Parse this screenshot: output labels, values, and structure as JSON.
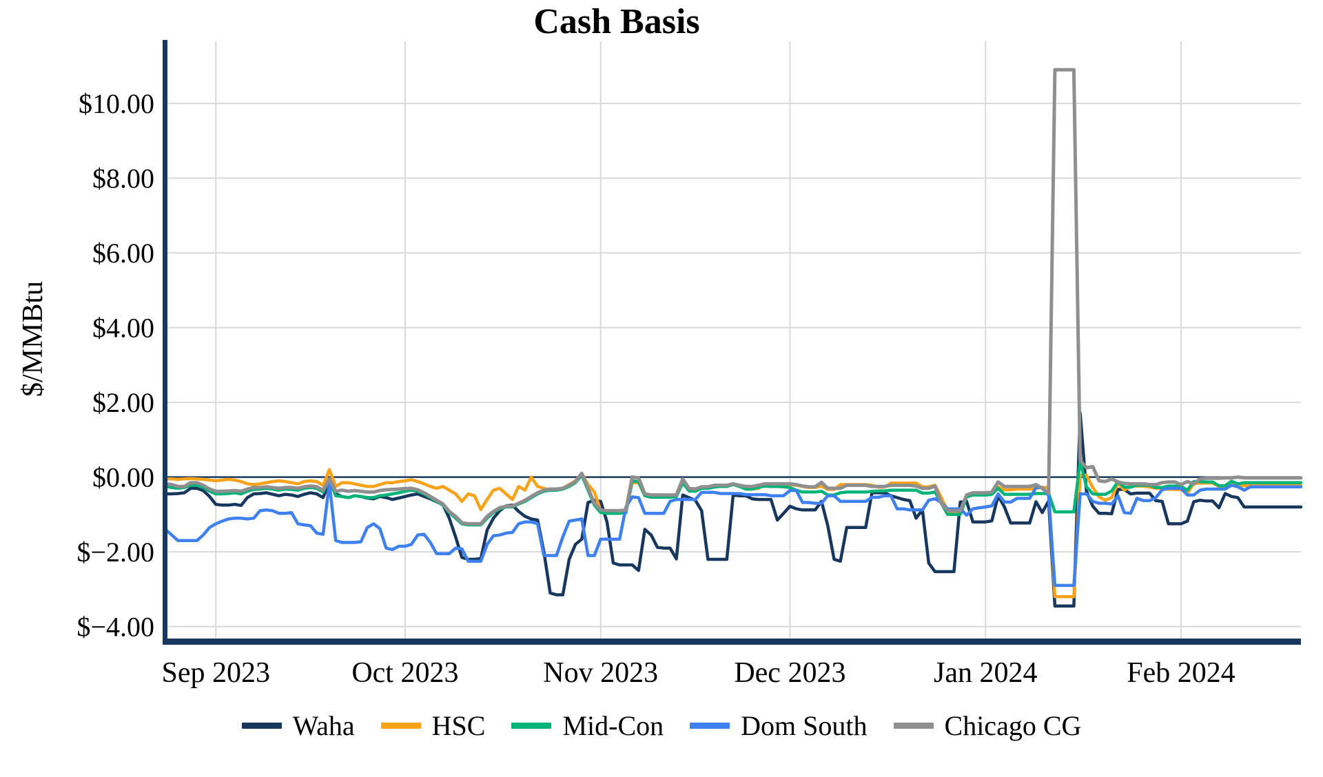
{
  "title": "Cash Basis",
  "y_axis_title": "$/MMBtu",
  "chart_data": {
    "type": "line",
    "title": "Cash Basis",
    "xlabel": "",
    "ylabel": "$/MMBtu",
    "ylim": [
      -4.6,
      11.7
    ],
    "grid": true,
    "legend_position": "bottom",
    "zero_line": true,
    "x_note": "daily values, day 0 = 2023-08-24, day 180 = 2024-02-20",
    "x_days_total": 180,
    "y_ticks": [
      {
        "value": 10,
        "label": "$10.00"
      },
      {
        "value": 8,
        "label": "$8.00"
      },
      {
        "value": 6,
        "label": "$6.00"
      },
      {
        "value": 4,
        "label": "$4.00"
      },
      {
        "value": 2,
        "label": "$2.00"
      },
      {
        "value": 0,
        "label": "$0.00"
      },
      {
        "value": -2,
        "label": "$−2.00"
      },
      {
        "value": -4,
        "label": "$−4.00"
      }
    ],
    "x_ticks": [
      {
        "day": 8,
        "label": "Sep 2023"
      },
      {
        "day": 38,
        "label": "Oct 2023"
      },
      {
        "day": 69,
        "label": "Nov 2023"
      },
      {
        "day": 99,
        "label": "Dec 2023"
      },
      {
        "day": 130,
        "label": "Jan 2024"
      },
      {
        "day": 161,
        "label": "Feb 2024"
      }
    ],
    "colors": {
      "axis": "#17375e",
      "gridline": "#d9d9d9",
      "zero_line": "#17375e",
      "background": "#ffffff"
    },
    "series": [
      {
        "name": "Waha",
        "color": "#17375e",
        "values": [
          -0.45,
          -0.45,
          -0.44,
          -0.42,
          -0.3,
          -0.3,
          -0.36,
          -0.52,
          -0.73,
          -0.75,
          -0.75,
          -0.73,
          -0.76,
          -0.55,
          -0.45,
          -0.44,
          -0.42,
          -0.46,
          -0.5,
          -0.46,
          -0.48,
          -0.52,
          -0.46,
          -0.42,
          -0.45,
          -0.55,
          -0.13,
          -0.45,
          -0.52,
          -0.55,
          -0.5,
          -0.52,
          -0.56,
          -0.58,
          -0.52,
          -0.55,
          -0.6,
          -0.56,
          -0.52,
          -0.48,
          -0.45,
          -0.52,
          -0.58,
          -0.66,
          -0.74,
          -1.1,
          -1.6,
          -2.15,
          -2.2,
          -2.2,
          -2.18,
          -1.42,
          -1.1,
          -0.9,
          -0.77,
          -0.75,
          -0.92,
          -1.05,
          -1.12,
          -1.15,
          -2.0,
          -3.1,
          -3.15,
          -3.15,
          -2.2,
          -1.8,
          -1.66,
          -0.68,
          -0.62,
          -0.65,
          -1.2,
          -2.3,
          -2.35,
          -2.35,
          -2.35,
          -2.5,
          -1.4,
          -1.55,
          -1.88,
          -1.9,
          -1.9,
          -2.19,
          -0.48,
          -0.55,
          -0.62,
          -0.9,
          -2.2,
          -2.2,
          -2.2,
          -2.2,
          -0.48,
          -0.5,
          -0.5,
          -0.58,
          -0.6,
          -0.6,
          -0.6,
          -1.15,
          -0.97,
          -0.78,
          -0.85,
          -0.88,
          -0.88,
          -0.88,
          -0.65,
          -1.3,
          -2.2,
          -2.25,
          -1.35,
          -1.35,
          -1.35,
          -1.35,
          -0.42,
          -0.42,
          -0.42,
          -0.5,
          -0.55,
          -0.6,
          -0.63,
          -1.1,
          -0.88,
          -2.3,
          -2.53,
          -2.53,
          -2.53,
          -2.53,
          -0.67,
          -0.65,
          -1.2,
          -1.2,
          -1.2,
          -1.17,
          -0.5,
          -0.8,
          -1.23,
          -1.23,
          -1.23,
          -1.23,
          -0.66,
          -0.95,
          -0.64,
          -3.45,
          -3.45,
          -3.45,
          -3.45,
          1.71,
          -0.38,
          -0.78,
          -0.97,
          -0.97,
          -0.98,
          -0.33,
          -0.33,
          -0.45,
          -0.43,
          -0.43,
          -0.43,
          -0.63,
          -0.65,
          -1.25,
          -1.25,
          -1.25,
          -1.18,
          -0.66,
          -0.62,
          -0.64,
          -0.64,
          -0.82,
          -0.44,
          -0.52,
          -0.55,
          -0.8,
          -0.8,
          -0.8,
          -0.8,
          -0.8,
          -0.8,
          -0.8,
          -0.8,
          -0.8,
          -0.8
        ]
      },
      {
        "name": "HSC",
        "color": "#f9a21a",
        "values": [
          -0.05,
          -0.05,
          -0.06,
          -0.05,
          -0.04,
          -0.05,
          -0.06,
          -0.08,
          -0.1,
          -0.08,
          -0.06,
          -0.08,
          -0.12,
          -0.18,
          -0.2,
          -0.18,
          -0.15,
          -0.12,
          -0.1,
          -0.12,
          -0.15,
          -0.18,
          -0.12,
          -0.1,
          -0.12,
          -0.22,
          0.2,
          -0.25,
          -0.15,
          -0.15,
          -0.18,
          -0.22,
          -0.25,
          -0.25,
          -0.2,
          -0.15,
          -0.15,
          -0.12,
          -0.1,
          -0.07,
          -0.12,
          -0.18,
          -0.25,
          -0.3,
          -0.25,
          -0.35,
          -0.45,
          -0.65,
          -0.45,
          -0.5,
          -0.87,
          -0.6,
          -0.35,
          -0.3,
          -0.45,
          -0.6,
          -0.25,
          -0.35,
          0.0,
          -0.25,
          -0.3,
          -0.35,
          -0.35,
          -0.3,
          -0.2,
          -0.1,
          0.1,
          -0.2,
          -0.4,
          -0.9,
          -0.9,
          -0.92,
          -0.92,
          -0.9,
          -0.15,
          -0.15,
          -0.5,
          -0.52,
          -0.52,
          -0.52,
          -0.52,
          -0.52,
          -0.15,
          -0.35,
          -0.35,
          -0.28,
          -0.28,
          -0.26,
          -0.24,
          -0.24,
          -0.18,
          -0.24,
          -0.32,
          -0.32,
          -0.3,
          -0.2,
          -0.2,
          -0.2,
          -0.2,
          -0.2,
          -0.22,
          -0.25,
          -0.28,
          -0.28,
          -0.24,
          -0.33,
          -0.33,
          -0.2,
          -0.2,
          -0.2,
          -0.2,
          -0.2,
          -0.22,
          -0.27,
          -0.27,
          -0.16,
          -0.16,
          -0.16,
          -0.16,
          -0.16,
          -0.26,
          -0.26,
          -0.22,
          -0.55,
          -0.92,
          -0.92,
          -0.92,
          -0.53,
          -0.46,
          -0.46,
          -0.46,
          -0.44,
          -0.26,
          -0.34,
          -0.34,
          -0.32,
          -0.32,
          -0.32,
          -0.3,
          -0.28,
          -0.28,
          -3.2,
          -3.2,
          -3.2,
          -3.2,
          0.05,
          0.05,
          -0.28,
          -0.53,
          -0.62,
          -0.55,
          -0.16,
          -0.35,
          -0.24,
          -0.24,
          -0.24,
          -0.27,
          -0.3,
          -0.3,
          -0.33,
          -0.33,
          -0.34,
          -0.43,
          -0.18,
          -0.16,
          -0.16,
          -0.16,
          -0.25,
          -0.25,
          -0.14,
          -0.23,
          -0.23,
          -0.23,
          -0.23,
          -0.23,
          -0.23,
          -0.23,
          -0.23,
          -0.23,
          -0.23,
          -0.23
        ]
      },
      {
        "name": "Mid-Con",
        "color": "#00b377",
        "values": [
          -0.25,
          -0.28,
          -0.3,
          -0.28,
          -0.22,
          -0.22,
          -0.28,
          -0.38,
          -0.45,
          -0.45,
          -0.44,
          -0.42,
          -0.45,
          -0.38,
          -0.33,
          -0.32,
          -0.3,
          -0.32,
          -0.35,
          -0.32,
          -0.33,
          -0.35,
          -0.3,
          -0.28,
          -0.3,
          -0.4,
          -0.05,
          -0.5,
          -0.52,
          -0.55,
          -0.5,
          -0.52,
          -0.55,
          -0.55,
          -0.5,
          -0.48,
          -0.45,
          -0.42,
          -0.38,
          -0.35,
          -0.38,
          -0.45,
          -0.55,
          -0.65,
          -0.75,
          -0.95,
          -1.1,
          -1.25,
          -1.28,
          -1.28,
          -1.28,
          -1.1,
          -0.95,
          -0.85,
          -0.8,
          -0.8,
          -0.72,
          -0.65,
          -0.55,
          -0.45,
          -0.38,
          -0.35,
          -0.35,
          -0.32,
          -0.25,
          -0.15,
          0.05,
          -0.35,
          -0.75,
          -0.95,
          -0.97,
          -0.97,
          -0.97,
          -0.95,
          -0.1,
          -0.12,
          -0.5,
          -0.54,
          -0.54,
          -0.54,
          -0.54,
          -0.52,
          -0.15,
          -0.37,
          -0.38,
          -0.3,
          -0.3,
          -0.27,
          -0.25,
          -0.25,
          -0.2,
          -0.25,
          -0.32,
          -0.32,
          -0.28,
          -0.24,
          -0.25,
          -0.25,
          -0.26,
          -0.28,
          -0.35,
          -0.4,
          -0.4,
          -0.4,
          -0.38,
          -0.48,
          -0.48,
          -0.42,
          -0.4,
          -0.4,
          -0.4,
          -0.4,
          -0.38,
          -0.37,
          -0.37,
          -0.35,
          -0.35,
          -0.35,
          -0.35,
          -0.35,
          -0.43,
          -0.43,
          -0.4,
          -0.7,
          -1.0,
          -1.0,
          -1.0,
          -0.53,
          -0.48,
          -0.48,
          -0.48,
          -0.46,
          -0.3,
          -0.46,
          -0.46,
          -0.46,
          -0.46,
          -0.46,
          -0.44,
          -0.44,
          -0.44,
          -0.93,
          -0.93,
          -0.93,
          -0.93,
          0.43,
          -0.26,
          -0.45,
          -0.46,
          -0.46,
          -0.37,
          -0.12,
          -0.27,
          -0.27,
          -0.22,
          -0.22,
          -0.22,
          -0.28,
          -0.28,
          -0.24,
          -0.24,
          -0.25,
          -0.35,
          -0.12,
          -0.12,
          -0.13,
          -0.13,
          -0.23,
          -0.23,
          -0.11,
          -0.18,
          -0.15,
          -0.15,
          -0.15,
          -0.15,
          -0.15,
          -0.15,
          -0.15,
          -0.15,
          -0.15,
          -0.15
        ]
      },
      {
        "name": "Dom South",
        "color": "#3f80f0",
        "values": [
          -1.4,
          -1.55,
          -1.7,
          -1.7,
          -1.7,
          -1.7,
          -1.55,
          -1.35,
          -1.25,
          -1.18,
          -1.12,
          -1.1,
          -1.1,
          -1.12,
          -1.1,
          -0.9,
          -0.88,
          -0.9,
          -0.97,
          -0.97,
          -0.95,
          -1.25,
          -1.28,
          -1.3,
          -1.5,
          -1.53,
          -0.16,
          -1.7,
          -1.75,
          -1.75,
          -1.75,
          -1.73,
          -1.35,
          -1.25,
          -1.38,
          -1.9,
          -1.94,
          -1.85,
          -1.85,
          -1.8,
          -1.55,
          -1.53,
          -1.75,
          -2.05,
          -2.05,
          -2.05,
          -1.9,
          -1.92,
          -2.25,
          -2.25,
          -2.25,
          -1.8,
          -1.57,
          -1.55,
          -1.5,
          -1.48,
          -1.25,
          -1.2,
          -1.2,
          -1.25,
          -2.1,
          -2.1,
          -2.1,
          -1.6,
          -1.18,
          -1.15,
          -1.12,
          -2.1,
          -2.1,
          -1.66,
          -1.66,
          -1.66,
          -1.66,
          -0.8,
          -0.53,
          -0.55,
          -0.97,
          -0.97,
          -0.97,
          -0.97,
          -0.65,
          -0.6,
          -0.6,
          -0.6,
          -0.6,
          -0.41,
          -0.41,
          -0.41,
          -0.44,
          -0.44,
          -0.44,
          -0.44,
          -0.47,
          -0.47,
          -0.47,
          -0.47,
          -0.5,
          -0.5,
          -0.5,
          -0.36,
          -0.36,
          -0.68,
          -0.68,
          -0.7,
          -0.7,
          -0.5,
          -0.5,
          -0.65,
          -0.65,
          -0.65,
          -0.65,
          -0.65,
          -0.54,
          -0.54,
          -0.5,
          -0.5,
          -0.85,
          -0.85,
          -0.88,
          -0.88,
          -0.88,
          -0.62,
          -0.58,
          -0.68,
          -0.85,
          -0.85,
          -0.85,
          -1.02,
          -0.85,
          -0.82,
          -0.8,
          -0.77,
          -0.45,
          -0.67,
          -0.67,
          -0.57,
          -0.57,
          -0.57,
          -0.28,
          -0.28,
          -0.5,
          -2.9,
          -2.9,
          -2.9,
          -2.9,
          -0.45,
          -0.45,
          -0.65,
          -0.7,
          -0.7,
          -0.72,
          -0.5,
          -0.95,
          -0.97,
          -0.57,
          -0.63,
          -0.63,
          -0.55,
          -0.34,
          -0.3,
          -0.3,
          -0.3,
          -0.48,
          -0.48,
          -0.35,
          -0.32,
          -0.32,
          -0.32,
          -0.32,
          -0.22,
          -0.26,
          -0.35,
          -0.26,
          -0.26,
          -0.26,
          -0.26,
          -0.26,
          -0.26,
          -0.26,
          -0.26,
          -0.26
        ]
      },
      {
        "name": "Chicago CG",
        "color": "#8f8f8f",
        "values": [
          -0.18,
          -0.2,
          -0.25,
          -0.25,
          -0.15,
          -0.15,
          -0.22,
          -0.32,
          -0.38,
          -0.38,
          -0.37,
          -0.36,
          -0.38,
          -0.32,
          -0.28,
          -0.28,
          -0.26,
          -0.28,
          -0.3,
          -0.28,
          -0.28,
          -0.3,
          -0.26,
          -0.24,
          -0.26,
          -0.35,
          -0.05,
          -0.38,
          -0.35,
          -0.38,
          -0.36,
          -0.38,
          -0.4,
          -0.4,
          -0.36,
          -0.34,
          -0.33,
          -0.32,
          -0.31,
          -0.3,
          -0.34,
          -0.42,
          -0.52,
          -0.62,
          -0.72,
          -0.92,
          -1.05,
          -1.22,
          -1.25,
          -1.25,
          -1.25,
          -1.05,
          -0.92,
          -0.82,
          -0.78,
          -0.78,
          -0.7,
          -0.62,
          -0.52,
          -0.42,
          -0.35,
          -0.32,
          -0.32,
          -0.3,
          -0.22,
          -0.12,
          0.1,
          -0.3,
          -0.7,
          -0.88,
          -0.9,
          -0.9,
          -0.9,
          -0.88,
          0.0,
          -0.02,
          -0.45,
          -0.48,
          -0.48,
          -0.48,
          -0.48,
          -0.48,
          -0.05,
          -0.3,
          -0.32,
          -0.26,
          -0.26,
          -0.22,
          -0.22,
          -0.22,
          -0.18,
          -0.22,
          -0.25,
          -0.25,
          -0.22,
          -0.18,
          -0.18,
          -0.18,
          -0.18,
          -0.18,
          -0.2,
          -0.24,
          -0.26,
          -0.26,
          -0.14,
          -0.3,
          -0.3,
          -0.3,
          -0.22,
          -0.22,
          -0.22,
          -0.22,
          -0.25,
          -0.25,
          -0.25,
          -0.22,
          -0.22,
          -0.22,
          -0.22,
          -0.24,
          -0.3,
          -0.3,
          -0.24,
          -0.7,
          -0.9,
          -0.9,
          -0.9,
          -0.48,
          -0.42,
          -0.42,
          -0.42,
          -0.4,
          -0.13,
          -0.25,
          -0.25,
          -0.25,
          -0.25,
          -0.25,
          -0.2,
          -0.3,
          -0.44,
          10.9,
          10.9,
          10.9,
          10.9,
          0.45,
          0.25,
          0.28,
          -0.1,
          -0.12,
          -0.05,
          -0.13,
          -0.17,
          -0.18,
          -0.18,
          -0.18,
          -0.2,
          -0.2,
          -0.15,
          -0.13,
          -0.13,
          -0.2,
          -0.12,
          -0.18,
          -0.05,
          -0.03,
          -0.03,
          -0.03,
          -0.02,
          -0.02,
          0.0,
          -0.02,
          -0.02,
          -0.02,
          -0.02,
          -0.02,
          -0.02,
          -0.02,
          -0.02,
          -0.02,
          -0.02
        ]
      }
    ]
  },
  "legend": {
    "items": [
      {
        "label": "Waha"
      },
      {
        "label": "HSC"
      },
      {
        "label": "Mid-Con"
      },
      {
        "label": "Dom South"
      },
      {
        "label": "Chicago CG"
      }
    ]
  }
}
